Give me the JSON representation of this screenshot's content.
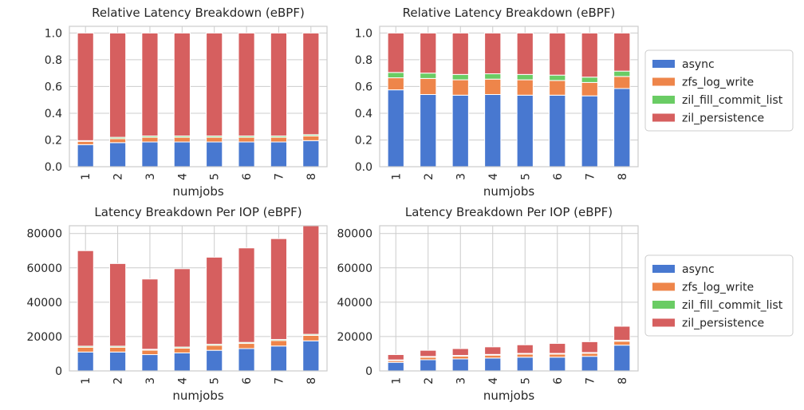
{
  "colors": {
    "async": "#4878d0",
    "zfs_log_write": "#ee854a",
    "zil_fill_commit_list": "#6acc64",
    "zil_persistence": "#d65f5f",
    "grid": "#cccccc",
    "plot_bg": "#ffffff",
    "axes_edge": "#cccccc",
    "bar_edge": "#ffffff"
  },
  "chart_data": [
    {
      "id": "top-left",
      "type": "bar",
      "stacked": true,
      "title": "Relative Latency Breakdown (eBPF)",
      "xlabel": "numjobs",
      "ylabel": "",
      "categories": [
        "1",
        "2",
        "3",
        "4",
        "5",
        "6",
        "7",
        "8"
      ],
      "ylim": [
        0,
        1.05
      ],
      "yticks": [
        0.0,
        0.2,
        0.4,
        0.6,
        0.8,
        1.0
      ],
      "ytick_labels": [
        "0.0",
        "0.2",
        "0.4",
        "0.6",
        "0.8",
        "1.0"
      ],
      "grid": true,
      "legend": null,
      "series": [
        {
          "name": "async",
          "values": [
            0.165,
            0.18,
            0.185,
            0.185,
            0.185,
            0.185,
            0.185,
            0.195
          ]
        },
        {
          "name": "zfs_log_write",
          "values": [
            0.025,
            0.03,
            0.035,
            0.035,
            0.035,
            0.035,
            0.035,
            0.035
          ]
        },
        {
          "name": "zil_fill_commit_list",
          "values": [
            0.005,
            0.01,
            0.01,
            0.01,
            0.01,
            0.01,
            0.01,
            0.01
          ]
        },
        {
          "name": "zil_persistence",
          "values": [
            0.805,
            0.78,
            0.77,
            0.77,
            0.77,
            0.77,
            0.77,
            0.76
          ]
        }
      ]
    },
    {
      "id": "top-right",
      "type": "bar",
      "stacked": true,
      "title": "Relative Latency Breakdown (eBPF)",
      "xlabel": "numjobs",
      "ylabel": "",
      "categories": [
        "1",
        "2",
        "3",
        "4",
        "5",
        "6",
        "7",
        "8"
      ],
      "ylim": [
        0,
        1.05
      ],
      "yticks": [
        0.0,
        0.2,
        0.4,
        0.6,
        0.8,
        1.0
      ],
      "ytick_labels": [
        "0.0",
        "0.2",
        "0.4",
        "0.6",
        "0.8",
        "1.0"
      ],
      "grid": true,
      "legend": "right",
      "series": [
        {
          "name": "async",
          "values": [
            0.575,
            0.54,
            0.535,
            0.54,
            0.535,
            0.535,
            0.53,
            0.585
          ]
        },
        {
          "name": "zfs_log_write",
          "values": [
            0.09,
            0.12,
            0.115,
            0.115,
            0.115,
            0.11,
            0.1,
            0.09
          ]
        },
        {
          "name": "zil_fill_commit_list",
          "values": [
            0.04,
            0.04,
            0.04,
            0.04,
            0.04,
            0.04,
            0.04,
            0.04
          ]
        },
        {
          "name": "zil_persistence",
          "values": [
            0.295,
            0.3,
            0.31,
            0.305,
            0.31,
            0.315,
            0.33,
            0.285
          ]
        }
      ]
    },
    {
      "id": "bottom-left",
      "type": "bar",
      "stacked": true,
      "title": "Latency Breakdown Per IOP (eBPF)",
      "xlabel": "numjobs",
      "ylabel": "",
      "categories": [
        "1",
        "2",
        "3",
        "4",
        "5",
        "6",
        "7",
        "8"
      ],
      "ylim": [
        0,
        84500
      ],
      "yticks": [
        0,
        20000,
        40000,
        60000,
        80000
      ],
      "ytick_labels": [
        "0",
        "20000",
        "40000",
        "60000",
        "80000"
      ],
      "grid": true,
      "legend": null,
      "series": [
        {
          "name": "async",
          "values": [
            11000,
            11000,
            9500,
            10500,
            12000,
            13000,
            14500,
            17500
          ]
        },
        {
          "name": "zfs_log_write",
          "values": [
            2800,
            2800,
            2600,
            2800,
            2900,
            3000,
            3200,
            3200
          ]
        },
        {
          "name": "zil_fill_commit_list",
          "values": [
            600,
            600,
            500,
            600,
            600,
            600,
            600,
            600
          ]
        },
        {
          "name": "zil_persistence",
          "values": [
            55600,
            48100,
            40900,
            45600,
            50700,
            55000,
            58700,
            63200
          ]
        }
      ]
    },
    {
      "id": "bottom-right",
      "type": "bar",
      "stacked": true,
      "title": "Latency Breakdown Per IOP (eBPF)",
      "xlabel": "numjobs",
      "ylabel": "",
      "categories": [
        "1",
        "2",
        "3",
        "4",
        "5",
        "6",
        "7",
        "8"
      ],
      "ylim": [
        0,
        84500
      ],
      "yticks": [
        0,
        20000,
        40000,
        60000,
        80000
      ],
      "ytick_labels": [
        "0",
        "20000",
        "40000",
        "60000",
        "80000"
      ],
      "grid": true,
      "legend": "right",
      "series": [
        {
          "name": "async",
          "values": [
            5000,
            6500,
            7000,
            7500,
            8000,
            8000,
            8500,
            15000
          ]
        },
        {
          "name": "zfs_log_write",
          "values": [
            1000,
            1500,
            1600,
            1700,
            1800,
            1800,
            1800,
            2300
          ]
        },
        {
          "name": "zil_fill_commit_list",
          "values": [
            400,
            400,
            400,
            400,
            400,
            400,
            400,
            500
          ]
        },
        {
          "name": "zil_persistence",
          "values": [
            3100,
            3600,
            4000,
            4400,
            5000,
            5800,
            6300,
            8200
          ]
        }
      ]
    }
  ]
}
